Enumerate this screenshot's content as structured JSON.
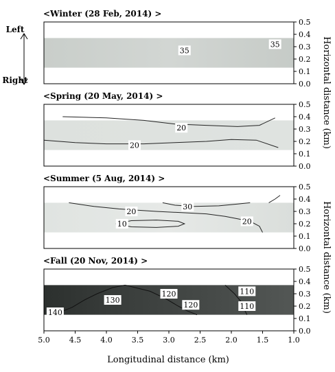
{
  "chart_data": [
    {
      "type": "contour",
      "title": "<Winter (28 Feb, 2014) >",
      "ylabel": "",
      "ylim": [
        0.0,
        0.5
      ],
      "y_ticks": [
        "0.5",
        "0.4",
        "0.3",
        "0.2",
        "0.1",
        "0.0"
      ],
      "band_y": [
        0.13,
        0.37
      ],
      "fill_level": "light",
      "contour_labels": [
        {
          "text": "35",
          "x": 2.75,
          "y": 0.27
        },
        {
          "text": "35",
          "x": 1.3,
          "y": 0.32
        }
      ]
    },
    {
      "type": "contour",
      "title": "<Spring (20 May, 2014) >",
      "ylabel": "",
      "ylim": [
        0.0,
        0.5
      ],
      "y_ticks": [
        "0.5",
        "0.4",
        "0.3",
        "0.2",
        "0.1",
        "0.0"
      ],
      "band_y": [
        0.13,
        0.37
      ],
      "fill_level": "very light",
      "contour_labels": [
        {
          "text": "20",
          "x": 2.8,
          "y": 0.31
        },
        {
          "text": "20",
          "x": 3.55,
          "y": 0.17
        }
      ]
    },
    {
      "type": "contour",
      "title": "<Summer (5 Aug, 2014) >",
      "ylabel": "",
      "ylim": [
        0.0,
        0.5
      ],
      "y_ticks": [
        "0.5",
        "0.4",
        "0.3",
        "0.2",
        "0.1",
        "0.0"
      ],
      "band_y": [
        0.13,
        0.37
      ],
      "fill_level": "very light",
      "contour_labels": [
        {
          "text": "30",
          "x": 2.7,
          "y": 0.34
        },
        {
          "text": "20",
          "x": 3.6,
          "y": 0.3
        },
        {
          "text": "10",
          "x": 3.75,
          "y": 0.2
        },
        {
          "text": "20",
          "x": 1.75,
          "y": 0.22
        }
      ]
    },
    {
      "type": "contour",
      "title": "<Fall (20 Nov, 2014) >",
      "ylabel": "",
      "ylim": [
        0.0,
        0.5
      ],
      "y_ticks": [
        "0.5",
        "0.4",
        "0.3",
        "0.2",
        "0.1",
        "0.0"
      ],
      "band_y": [
        0.13,
        0.37
      ],
      "fill_level": "dark",
      "contour_labels": [
        {
          "text": "120",
          "x": 3.0,
          "y": 0.3
        },
        {
          "text": "110",
          "x": 1.75,
          "y": 0.32
        },
        {
          "text": "130",
          "x": 3.9,
          "y": 0.25
        },
        {
          "text": "120",
          "x": 2.65,
          "y": 0.21
        },
        {
          "text": "110",
          "x": 1.75,
          "y": 0.2
        },
        {
          "text": "140",
          "x": 4.82,
          "y": 0.15
        }
      ]
    }
  ],
  "shared": {
    "xlabel": "Longitudinal distance (km)",
    "x_ticks": [
      "5.0",
      "4.5",
      "4.0",
      "3.5",
      "3.0",
      "2.5",
      "2.0",
      "1.5",
      "1.0"
    ],
    "xlim": [
      5.0,
      1.0
    ],
    "ylabel": "Horizontal distance (km)",
    "direction_top": "Left",
    "direction_bottom": "Right"
  }
}
